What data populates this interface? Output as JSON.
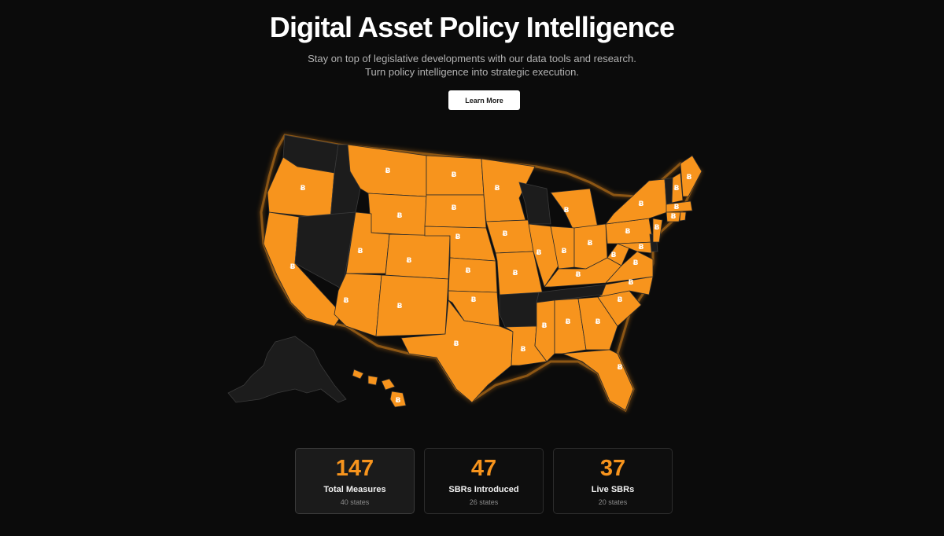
{
  "hero": {
    "title": "Digital Asset Policy Intelligence",
    "subtitle_line1": "Stay on top of legislative developments with our data tools and research.",
    "subtitle_line2": "Turn policy intelligence into strategic execution.",
    "cta_label": "Learn More"
  },
  "map": {
    "active_color": "#f7941d",
    "inactive_color": "#1c1c1c",
    "marker_icon": "bitcoin-icon",
    "marker_glyph": "Ƀ",
    "inactive_states": [
      "Washington",
      "Idaho",
      "Nevada",
      "Wisconsin",
      "Arkansas",
      "Tennessee",
      "Vermont",
      "Delaware",
      "Alaska"
    ]
  },
  "stats": [
    {
      "value": "147",
      "label": "Total Measures",
      "sub": "40 states"
    },
    {
      "value": "47",
      "label": "SBRs Introduced",
      "sub": "26 states"
    },
    {
      "value": "37",
      "label": "Live SBRs",
      "sub": "20 states"
    }
  ]
}
